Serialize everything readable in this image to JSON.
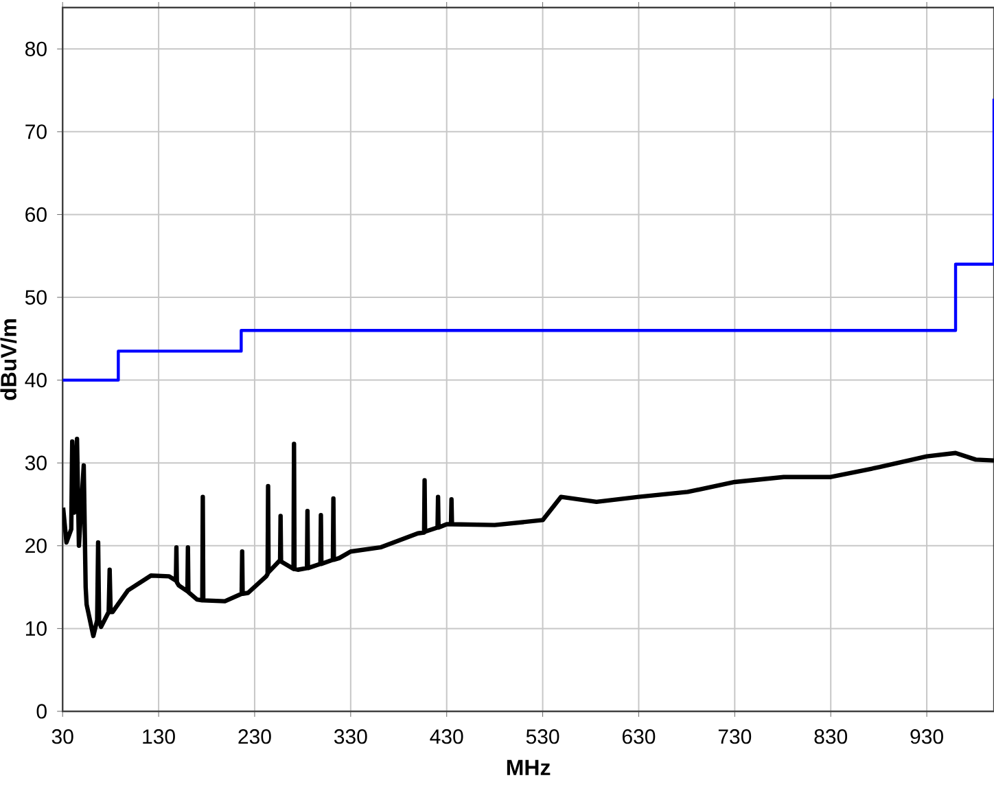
{
  "chart_data": {
    "type": "line",
    "xlabel": "MHz",
    "ylabel": "dBuV/m",
    "xlim": [
      30,
      1000
    ],
    "ylim": [
      0,
      85
    ],
    "xticks": [
      30,
      130,
      230,
      330,
      430,
      530,
      630,
      730,
      830,
      930
    ],
    "yticks": [
      0,
      10,
      20,
      30,
      40,
      50,
      60,
      70,
      80
    ],
    "grid": true,
    "marker": "none",
    "line_style": "solid",
    "series": [
      {
        "color": "#000000",
        "x": [
          30.5,
          34,
          39,
          40,
          42,
          45,
          47,
          52,
          54,
          55,
          62,
          66,
          67,
          68,
          70,
          78,
          79,
          80,
          82,
          98,
          122,
          141,
          148,
          148.5,
          149,
          151,
          160,
          160.5,
          161,
          170,
          175.5,
          176,
          176.5,
          199,
          216.5,
          217,
          217.5,
          223,
          242,
          243.5,
          244,
          244.5,
          256,
          256.5,
          257,
          257.5,
          270.5,
          271,
          271.5,
          275,
          284.5,
          285,
          285.5,
          298.5,
          299,
          299.5,
          311.5,
          312,
          312.5,
          318,
          330,
          361,
          400,
          406.5,
          407,
          407.5,
          420.5,
          421,
          421.5,
          430,
          434.5,
          435,
          435.5,
          480,
          530,
          549,
          586,
          630,
          681,
          730,
          781,
          830,
          881,
          930,
          960,
          981,
          1000
        ],
        "values": [
          24.6,
          20.4,
          22,
          32.6,
          24,
          32.9,
          20,
          29.7,
          15,
          12.9,
          9.1,
          11,
          20.4,
          11,
          10.2,
          12,
          17.1,
          12,
          12,
          14.6,
          16.4,
          16.3,
          15.8,
          19.8,
          15.6,
          15.2,
          14.5,
          19.8,
          14.4,
          13.5,
          13.4,
          25.9,
          13.4,
          13.3,
          14.2,
          19.3,
          14.2,
          14.3,
          16.3,
          16.6,
          27.2,
          16.8,
          18.2,
          18.2,
          23.6,
          18.1,
          17.2,
          32.3,
          17.2,
          17.1,
          17.3,
          24.2,
          17.3,
          17.8,
          23.7,
          17.8,
          18.3,
          25.7,
          18.3,
          18.5,
          19.3,
          19.8,
          21.5,
          21.6,
          27.9,
          21.7,
          22.2,
          25.9,
          22.2,
          22.6,
          22.6,
          25.6,
          22.6,
          22.5,
          23.1,
          25.9,
          25.3,
          25.9,
          26.5,
          27.7,
          28.3,
          28.3,
          29.5,
          30.8,
          31.2,
          30.4,
          30.3
        ]
      },
      {
        "type": "step",
        "color": "#0000ff",
        "x": [
          30,
          88,
          216,
          960,
          1000
        ],
        "values": [
          40,
          43.5,
          46,
          54,
          74
        ]
      }
    ]
  }
}
